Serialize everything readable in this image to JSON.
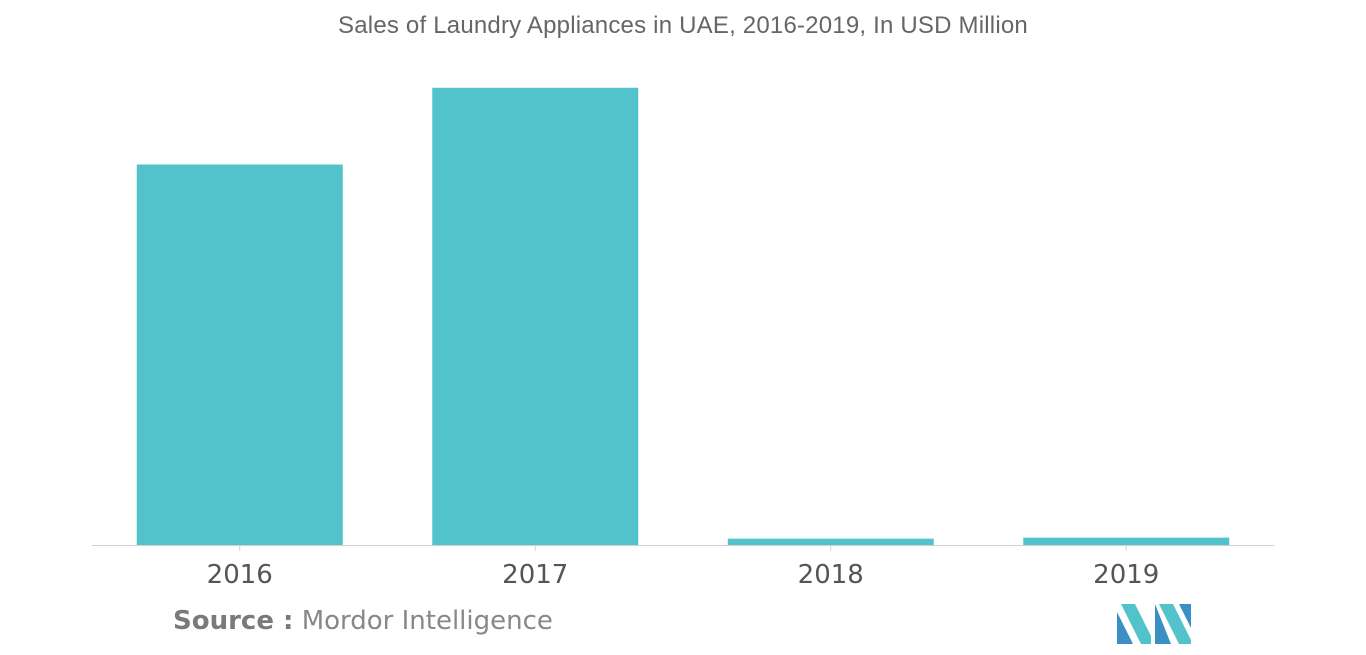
{
  "chart_data": {
    "type": "bar",
    "title": "Sales of Laundry Appliances in UAE, 2016-2019, In USD Million",
    "categories": [
      "2016",
      "2017",
      "2018",
      "2019"
    ],
    "values": [
      362,
      435,
      6,
      7
    ],
    "ylim": [
      0,
      450
    ],
    "xlabel": "",
    "ylabel": "",
    "grid": false,
    "legend": "none",
    "bar_color": "#52c3cb",
    "axis_color": "#d0d0d0"
  },
  "source": {
    "label": "Source :",
    "text": "Mordor Intelligence"
  },
  "logo": {
    "icon": "mordor-intelligence-logo-icon",
    "colors": [
      "#3a8fc4",
      "#52c3cb"
    ]
  }
}
